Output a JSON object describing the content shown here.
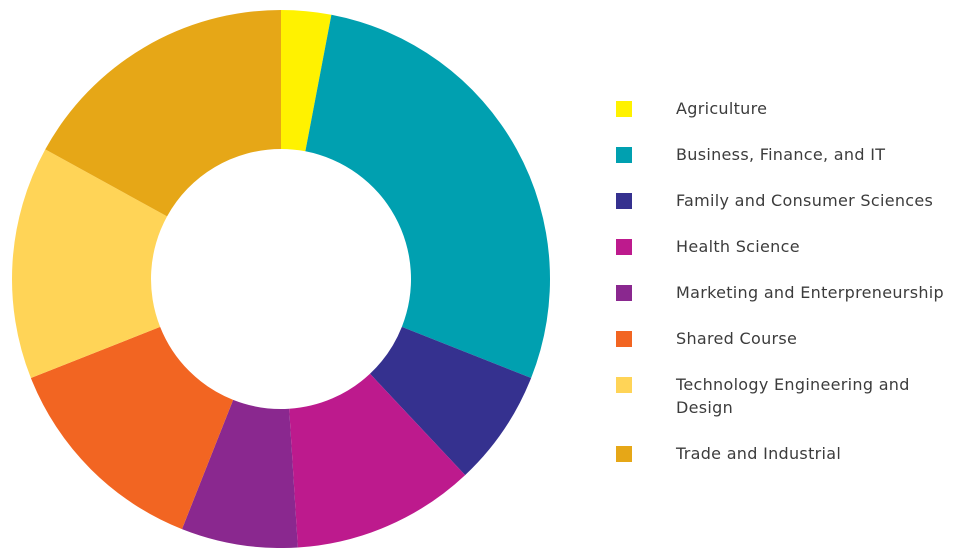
{
  "chart_data": {
    "type": "donut",
    "categories": [
      "Agriculture",
      "Business, Finance, and IT",
      "Family and Consumer Sciences",
      "Health Science",
      "Marketing and Enterpreneurship",
      "Shared Course",
      "Technology Engineering and Design",
      "Trade and Industrial"
    ],
    "values": [
      3,
      28,
      7,
      11,
      7,
      13,
      14,
      17
    ],
    "colors": [
      "#fff200",
      "#00a0b0",
      "#35318f",
      "#bd1a8d",
      "#8a288f",
      "#f26522",
      "#ffd457",
      "#e6a717"
    ],
    "legend": "right"
  }
}
